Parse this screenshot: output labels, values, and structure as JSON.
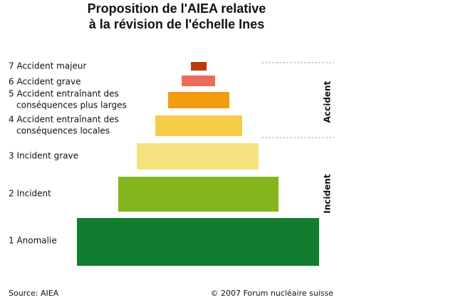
{
  "title": [
    "Proposition de l'AIEA relative",
    "à la révision de l'échelle Ines"
  ],
  "levels": [
    {
      "lines": [
        "7 Accident majeur"
      ]
    },
    {
      "lines": [
        "6 Accident grave"
      ]
    },
    {
      "lines": [
        "5 Accident entraînant des",
        "conséquences plus larges"
      ]
    },
    {
      "lines": [
        "4 Accident entraînant des",
        "conséquences locales"
      ]
    },
    {
      "lines": [
        "3 Incident grave"
      ]
    },
    {
      "lines": [
        "2 Incident"
      ]
    },
    {
      "lines": [
        "1 Anomalie"
      ]
    }
  ],
  "groups": [
    "Accident",
    "Incident"
  ],
  "source": "Source: AIEA",
  "copyright": "© 2007 Forum nucléaire suisse"
}
